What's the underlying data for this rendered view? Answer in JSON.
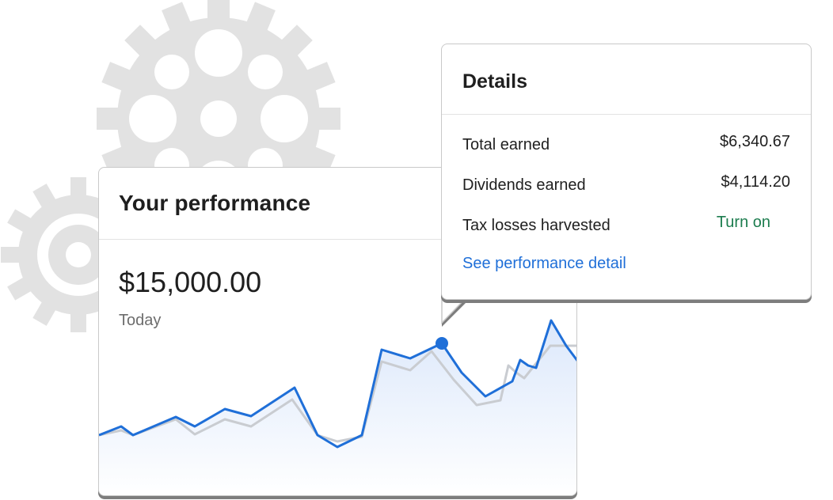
{
  "performance": {
    "title": "Your performance",
    "value": "$15,000.00",
    "period": "Today"
  },
  "details": {
    "title": "Details",
    "rows": [
      {
        "label": "Total earned",
        "value": "$6,340.67"
      },
      {
        "label": "Dividends earned",
        "value": "$4,114.20"
      },
      {
        "label": "Tax losses harvested",
        "value": "Turn on"
      }
    ],
    "link": "See performance detail"
  },
  "colors": {
    "accent_blue": "#1f6fd8",
    "positive_green": "#1d7d4f",
    "gear_gray": "#e2e2e2"
  }
}
